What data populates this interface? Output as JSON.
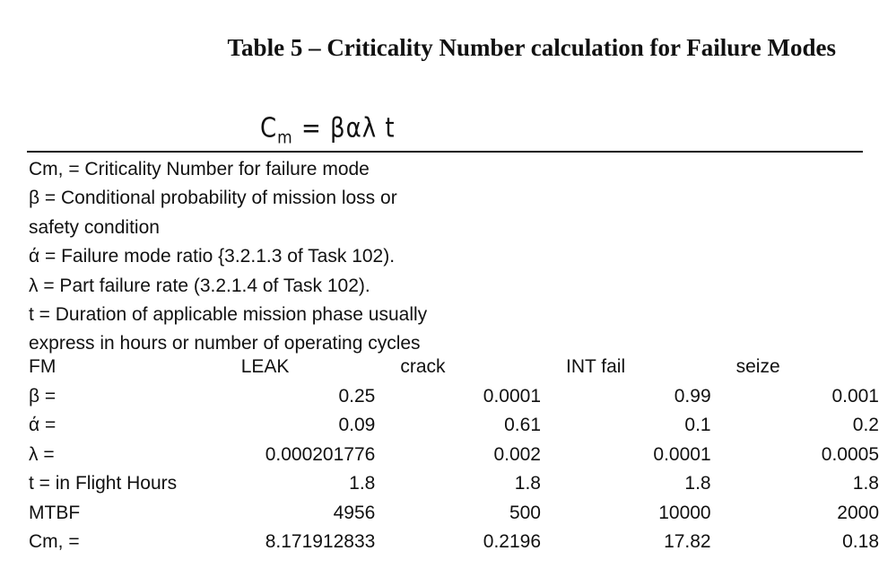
{
  "title": "Table 5 – Criticality Number calculation for Failure Modes",
  "formula": {
    "lhs": "C",
    "lhs_sub": "m",
    "rhs": "= βαλ t"
  },
  "definitions": [
    "Cm, = Criticality Number for failure mode",
    "β = Conditional probability of mission loss or",
    "safety condition",
    "ά = Failure mode ratio {3.2.1.3 of Task 102).",
    "λ = Part failure rate (3.2.1.4 of Task 102).",
    "t = Duration of applicable mission phase usually",
    "express in hours or number of operating cycles"
  ],
  "table": {
    "headers": [
      "FM",
      "LEAK",
      "crack",
      "INT fail",
      "seize"
    ],
    "rows": [
      [
        "β =",
        "0.25",
        "0.0001",
        "0.99",
        "0.001"
      ],
      [
        "ά =",
        "0.09",
        "0.61",
        "0.1",
        "0.2"
      ],
      [
        "λ =",
        "0.000201776",
        "0.002",
        "0.0001",
        "0.0005"
      ],
      [
        "t = in Flight Hours",
        "1.8",
        "1.8",
        "1.8",
        "1.8"
      ],
      [
        "MTBF",
        "4956",
        "500",
        "10000",
        "2000"
      ],
      [
        "Cm, =",
        "8.171912833",
        "0.2196",
        "17.82",
        "0.18"
      ]
    ]
  }
}
